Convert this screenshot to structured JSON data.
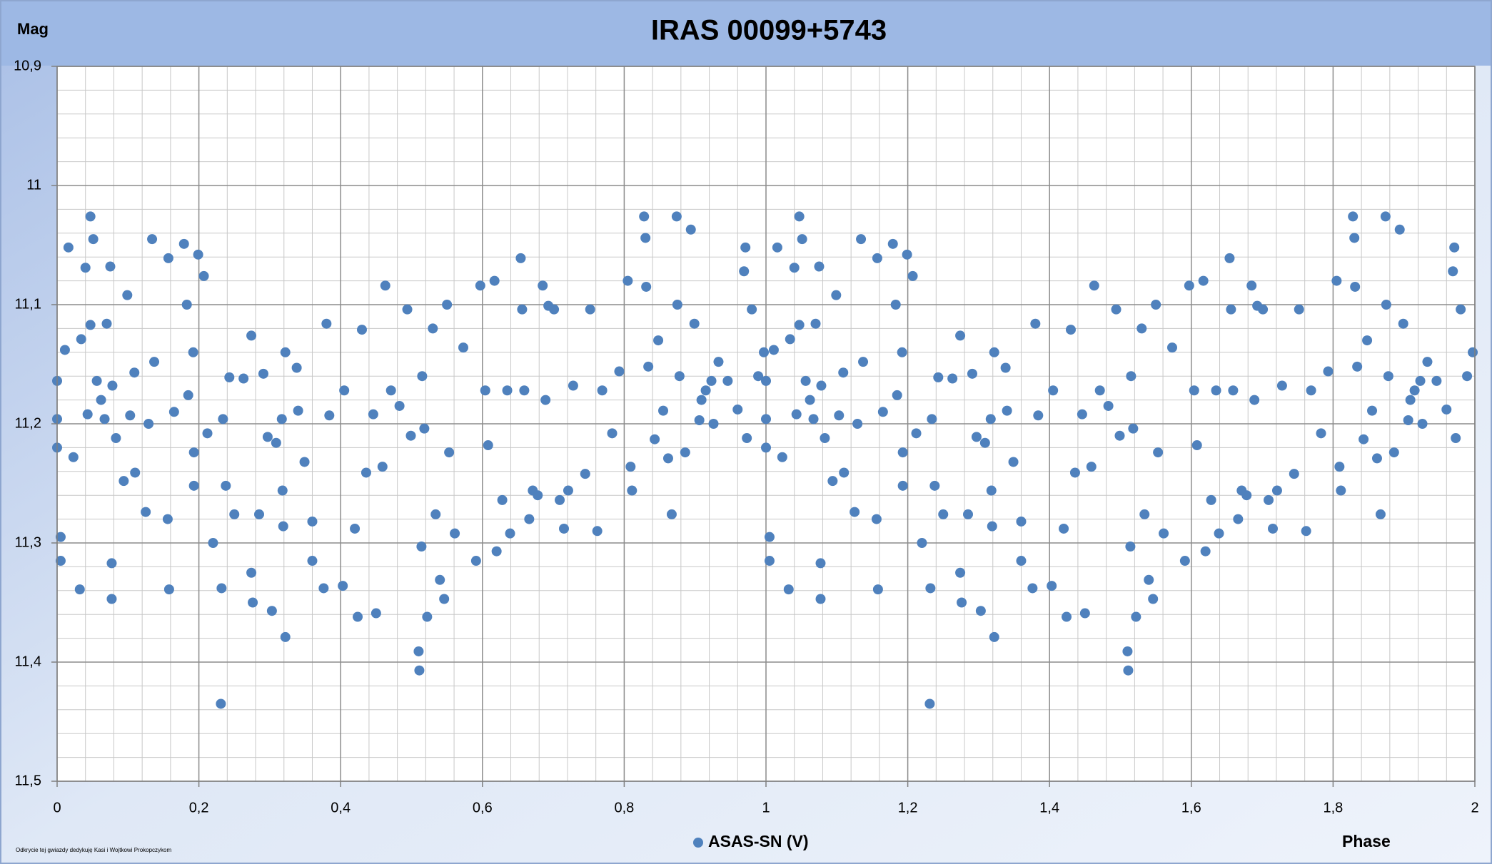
{
  "chart_data": {
    "type": "scatter",
    "title": "IRAS  00099+5743",
    "y_label": "Mag",
    "x_label": "Phase",
    "annotation": "Odkrycie tej gwiazdy dedykuję Kasi i Wojtkowi Prokopczykom",
    "xlim": [
      0,
      2
    ],
    "ylim": [
      10.9,
      11.5
    ],
    "y_reversed": true,
    "grid": true,
    "minor_grid": true,
    "legend": "bottom",
    "xticks": [
      0,
      {
        "value": 0.2,
        "label": "0,2"
      },
      {
        "value": 0.4,
        "label": "0,4"
      },
      {
        "value": 0.6,
        "label": "0,6"
      },
      {
        "value": 0.8,
        "label": "0,8"
      },
      1,
      {
        "value": 1.2,
        "label": "1,2"
      },
      {
        "value": 1.4,
        "label": "1,4"
      },
      {
        "value": 1.6,
        "label": "1,6"
      },
      {
        "value": 1.8,
        "label": "1,8"
      },
      2
    ],
    "yticks": [
      {
        "value": 10.9,
        "label": "10,9"
      },
      11,
      {
        "value": 11.1,
        "label": "11,1"
      },
      {
        "value": 11.2,
        "label": "11,2"
      },
      {
        "value": 11.3,
        "label": "11,3"
      },
      {
        "value": 11.4,
        "label": "11,4"
      },
      {
        "value": 11.5,
        "label": "11,5"
      }
    ],
    "series": [
      {
        "name": "ASAS-SN (V)",
        "color": "#4f81bd",
        "x": [
          0.0,
          0.0,
          0.0,
          0.005,
          0.005,
          0.011,
          0.016,
          0.023,
          0.032,
          0.034,
          0.04,
          0.043,
          0.047,
          0.047,
          0.051,
          0.056,
          0.062,
          0.067,
          0.07,
          0.075,
          0.077,
          0.077,
          0.078,
          0.083,
          0.094,
          0.099,
          0.103,
          0.109,
          0.11,
          0.125,
          0.129,
          0.134,
          0.137,
          0.156,
          0.158,
          0.157,
          0.165,
          0.179,
          0.183,
          0.185,
          0.192,
          0.193,
          0.193,
          0.199,
          0.207,
          0.212,
          0.22,
          0.231,
          0.232,
          0.234,
          0.238,
          0.243,
          0.25,
          0.263,
          0.274,
          0.274,
          0.276,
          0.285,
          0.291,
          0.297,
          0.303,
          0.309,
          0.317,
          0.318,
          0.319,
          0.322,
          0.322,
          0.338,
          0.34,
          0.349,
          0.36,
          0.36,
          0.376,
          0.38,
          0.384,
          0.403,
          0.405,
          0.42,
          0.424,
          0.43,
          0.436,
          0.446,
          0.45,
          0.459,
          0.463,
          0.471,
          0.483,
          0.494,
          0.499,
          0.511,
          0.51,
          0.514,
          0.515,
          0.518,
          0.522,
          0.53,
          0.534,
          0.54,
          0.546,
          0.55,
          0.553,
          0.561,
          0.573,
          0.591,
          0.597,
          0.604,
          0.608,
          0.617,
          0.62,
          0.628,
          0.635,
          0.639,
          0.654,
          0.656,
          0.659,
          0.666,
          0.671,
          0.678,
          0.685,
          0.689,
          0.693,
          0.701,
          0.709,
          0.715,
          0.721,
          0.728,
          0.745,
          0.752,
          0.762,
          0.769,
          0.783,
          0.793,
          0.805,
          0.809,
          0.811,
          0.828,
          0.83,
          0.831,
          0.834,
          0.843,
          0.848,
          0.855,
          0.862,
          0.867,
          0.874,
          0.875,
          0.878,
          0.886,
          0.894,
          0.899,
          0.906,
          0.909,
          0.915,
          0.923,
          0.926,
          0.933,
          0.946,
          0.96,
          0.969,
          0.971,
          0.973,
          0.98,
          0.989,
          0.997,
          1.0,
          1.0,
          1.0,
          1.005,
          1.005,
          1.011,
          1.016,
          1.023,
          1.032,
          1.034,
          1.04,
          1.043,
          1.047,
          1.047,
          1.051,
          1.056,
          1.062,
          1.067,
          1.07,
          1.075,
          1.077,
          1.077,
          1.078,
          1.083,
          1.094,
          1.099,
          1.103,
          1.109,
          1.11,
          1.125,
          1.129,
          1.134,
          1.137,
          1.156,
          1.158,
          1.157,
          1.165,
          1.179,
          1.183,
          1.185,
          1.192,
          1.193,
          1.193,
          1.199,
          1.207,
          1.212,
          1.22,
          1.231,
          1.232,
          1.234,
          1.238,
          1.243,
          1.25,
          1.263,
          1.274,
          1.274,
          1.276,
          1.285,
          1.291,
          1.297,
          1.303,
          1.309,
          1.317,
          1.318,
          1.319,
          1.322,
          1.322,
          1.338,
          1.34,
          1.349,
          1.36,
          1.36,
          1.376,
          1.38,
          1.384,
          1.403,
          1.405,
          1.42,
          1.424,
          1.43,
          1.436,
          1.446,
          1.45,
          1.459,
          1.463,
          1.471,
          1.483,
          1.494,
          1.499,
          1.511,
          1.51,
          1.514,
          1.515,
          1.518,
          1.522,
          1.53,
          1.534,
          1.54,
          1.546,
          1.55,
          1.553,
          1.561,
          1.573,
          1.591,
          1.597,
          1.604,
          1.608,
          1.617,
          1.62,
          1.628,
          1.635,
          1.639,
          1.654,
          1.656,
          1.659,
          1.666,
          1.671,
          1.678,
          1.685,
          1.689,
          1.693,
          1.701,
          1.709,
          1.715,
          1.721,
          1.728,
          1.745,
          1.752,
          1.762,
          1.769,
          1.783,
          1.793,
          1.805,
          1.809,
          1.811,
          1.828,
          1.83,
          1.831,
          1.834,
          1.843,
          1.848,
          1.855,
          1.862,
          1.867,
          1.874,
          1.875,
          1.878,
          1.886,
          1.894,
          1.899,
          1.906,
          1.909,
          1.915,
          1.923,
          1.926,
          1.933,
          1.946,
          1.96,
          1.969,
          1.971,
          1.973,
          1.98,
          1.989,
          1.997
        ],
        "values": [
          11.164,
          11.196,
          11.22,
          11.295,
          11.315,
          11.138,
          11.052,
          11.228,
          11.339,
          11.129,
          11.069,
          11.192,
          11.026,
          11.117,
          11.045,
          11.164,
          11.18,
          11.196,
          11.116,
          11.068,
          11.317,
          11.347,
          11.168,
          11.212,
          11.248,
          11.092,
          11.193,
          11.157,
          11.241,
          11.274,
          11.2,
          11.045,
          11.148,
          11.28,
          11.339,
          11.061,
          11.19,
          11.049,
          11.1,
          11.176,
          11.14,
          11.224,
          11.252,
          11.058,
          11.076,
          11.208,
          11.3,
          11.435,
          11.338,
          11.196,
          11.252,
          11.161,
          11.276,
          11.162,
          11.126,
          11.325,
          11.35,
          11.276,
          11.158,
          11.211,
          11.357,
          11.216,
          11.196,
          11.256,
          11.286,
          11.379,
          11.14,
          11.153,
          11.189,
          11.232,
          11.282,
          11.315,
          11.338,
          11.116,
          11.193,
          11.336,
          11.172,
          11.288,
          11.362,
          11.121,
          11.241,
          11.192,
          11.359,
          11.236,
          11.084,
          11.172,
          11.185,
          11.104,
          11.21,
          11.407,
          11.391,
          11.303,
          11.16,
          11.204,
          11.362,
          11.12,
          11.276,
          11.331,
          11.347,
          11.1,
          11.224,
          11.292,
          11.136,
          11.315,
          11.084,
          11.172,
          11.218,
          11.08,
          11.307,
          11.264,
          11.172,
          11.292,
          11.061,
          11.104,
          11.172,
          11.28,
          11.256,
          11.26,
          11.084,
          11.18,
          11.101,
          11.104,
          11.264,
          11.288,
          11.256,
          11.168,
          11.242,
          11.104,
          11.29,
          11.172,
          11.208,
          11.156,
          11.08,
          11.236,
          11.256,
          11.026,
          11.044,
          11.085,
          11.152,
          11.213,
          11.13,
          11.189,
          11.229,
          11.276,
          11.026,
          11.1,
          11.16,
          11.224,
          11.037,
          11.116,
          11.197,
          11.18,
          11.172,
          11.164,
          11.2,
          11.148,
          11.164,
          11.188,
          11.072,
          11.052,
          11.212,
          11.104,
          11.16,
          11.14,
          11.164,
          11.196,
          11.22,
          11.295,
          11.315,
          11.138,
          11.052,
          11.228,
          11.339,
          11.129,
          11.069,
          11.192,
          11.026,
          11.117,
          11.045,
          11.164,
          11.18,
          11.196,
          11.116,
          11.068,
          11.317,
          11.347,
          11.168,
          11.212,
          11.248,
          11.092,
          11.193,
          11.157,
          11.241,
          11.274,
          11.2,
          11.045,
          11.148,
          11.28,
          11.339,
          11.061,
          11.19,
          11.049,
          11.1,
          11.176,
          11.14,
          11.224,
          11.252,
          11.058,
          11.076,
          11.208,
          11.3,
          11.435,
          11.338,
          11.196,
          11.252,
          11.161,
          11.276,
          11.162,
          11.126,
          11.325,
          11.35,
          11.276,
          11.158,
          11.211,
          11.357,
          11.216,
          11.196,
          11.256,
          11.286,
          11.379,
          11.14,
          11.153,
          11.189,
          11.232,
          11.282,
          11.315,
          11.338,
          11.116,
          11.193,
          11.336,
          11.172,
          11.288,
          11.362,
          11.121,
          11.241,
          11.192,
          11.359,
          11.236,
          11.084,
          11.172,
          11.185,
          11.104,
          11.21,
          11.407,
          11.391,
          11.303,
          11.16,
          11.204,
          11.362,
          11.12,
          11.276,
          11.331,
          11.347,
          11.1,
          11.224,
          11.292,
          11.136,
          11.315,
          11.084,
          11.172,
          11.218,
          11.08,
          11.307,
          11.264,
          11.172,
          11.292,
          11.061,
          11.104,
          11.172,
          11.28,
          11.256,
          11.26,
          11.084,
          11.18,
          11.101,
          11.104,
          11.264,
          11.288,
          11.256,
          11.168,
          11.242,
          11.104,
          11.29,
          11.172,
          11.208,
          11.156,
          11.08,
          11.236,
          11.256,
          11.026,
          11.044,
          11.085,
          11.152,
          11.213,
          11.13,
          11.189,
          11.229,
          11.276,
          11.026,
          11.1,
          11.16,
          11.224,
          11.037,
          11.116,
          11.197,
          11.18,
          11.172,
          11.164,
          11.2,
          11.148,
          11.164,
          11.188,
          11.072,
          11.052,
          11.212,
          11.104,
          11.16,
          11.14
        ]
      }
    ]
  }
}
